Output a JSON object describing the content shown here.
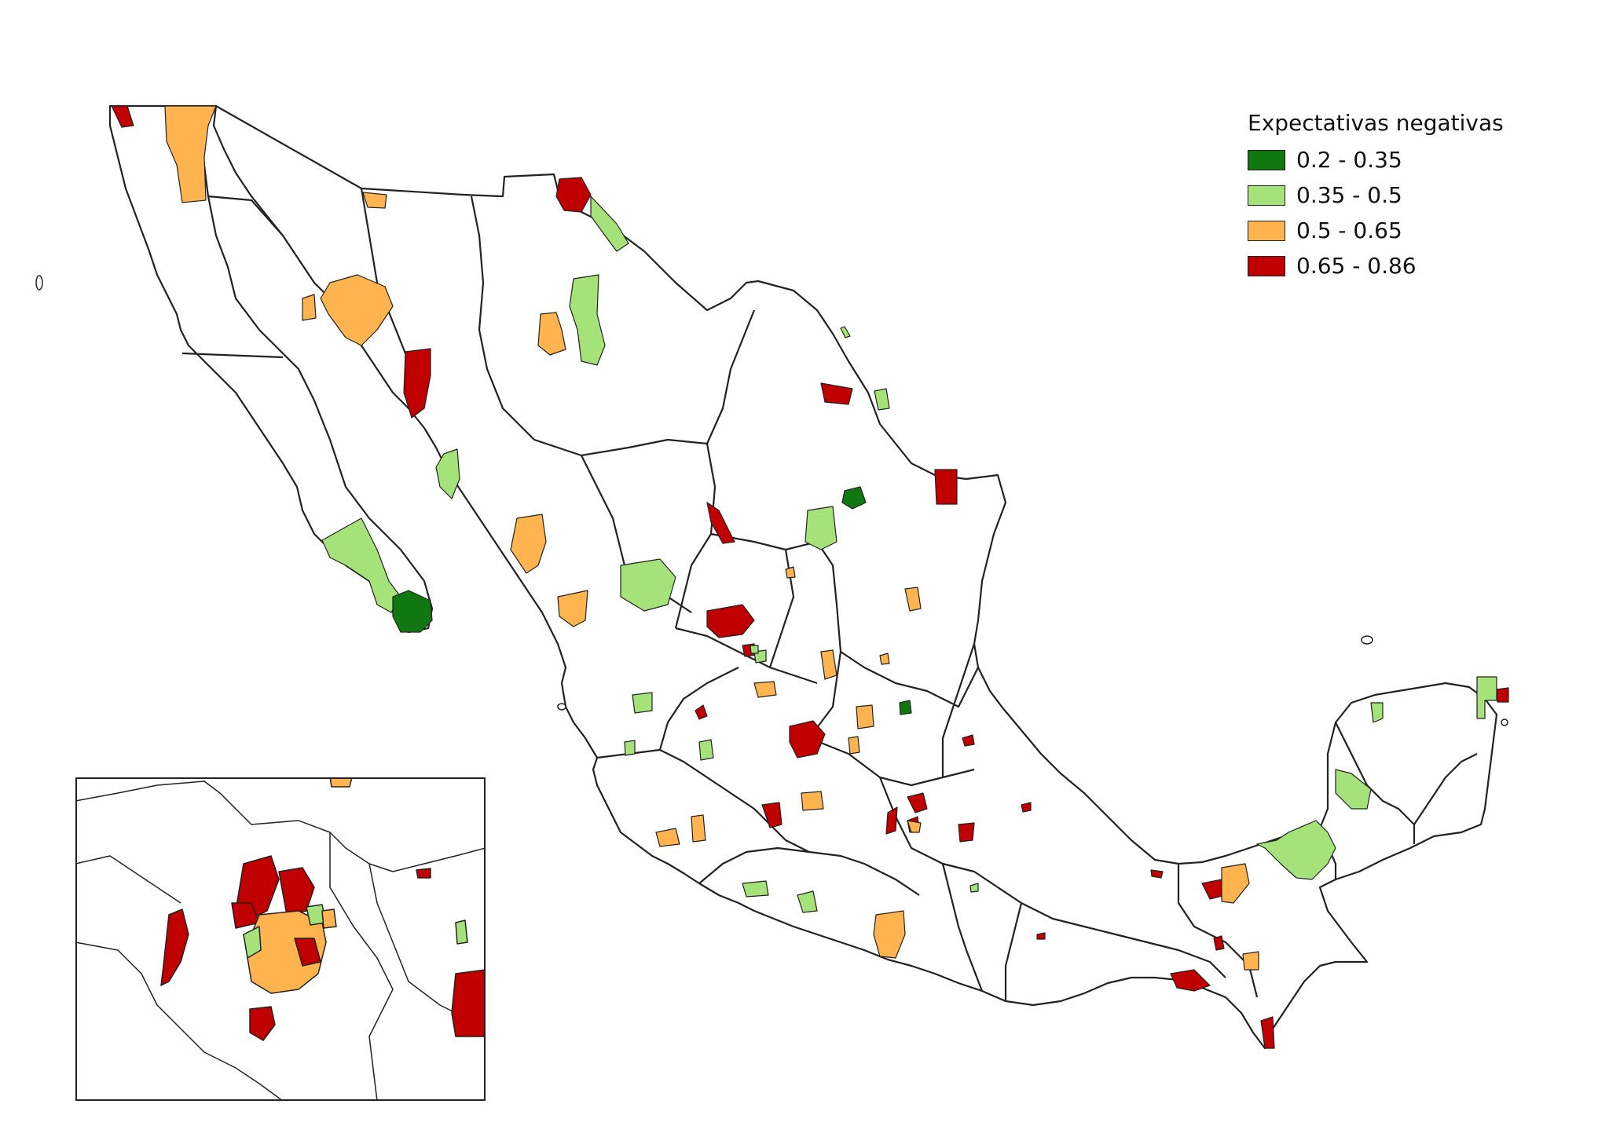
{
  "map": {
    "title": "Expectativas negativas",
    "legend": [
      {
        "label": "0.2 - 0.35",
        "color": "#117711"
      },
      {
        "label": "0.35 - 0.5",
        "color": "#a6e27a"
      },
      {
        "label": "0.5 - 0.65",
        "color": "#ffb44f"
      },
      {
        "label": "0.65 - 0.86",
        "color": "#c00000"
      }
    ],
    "colors": {
      "outline": "#222222",
      "land": "#ffffff",
      "class1": "#117711",
      "class2": "#a6e27a",
      "class3": "#ffb44f",
      "class4": "#c00000"
    }
  }
}
